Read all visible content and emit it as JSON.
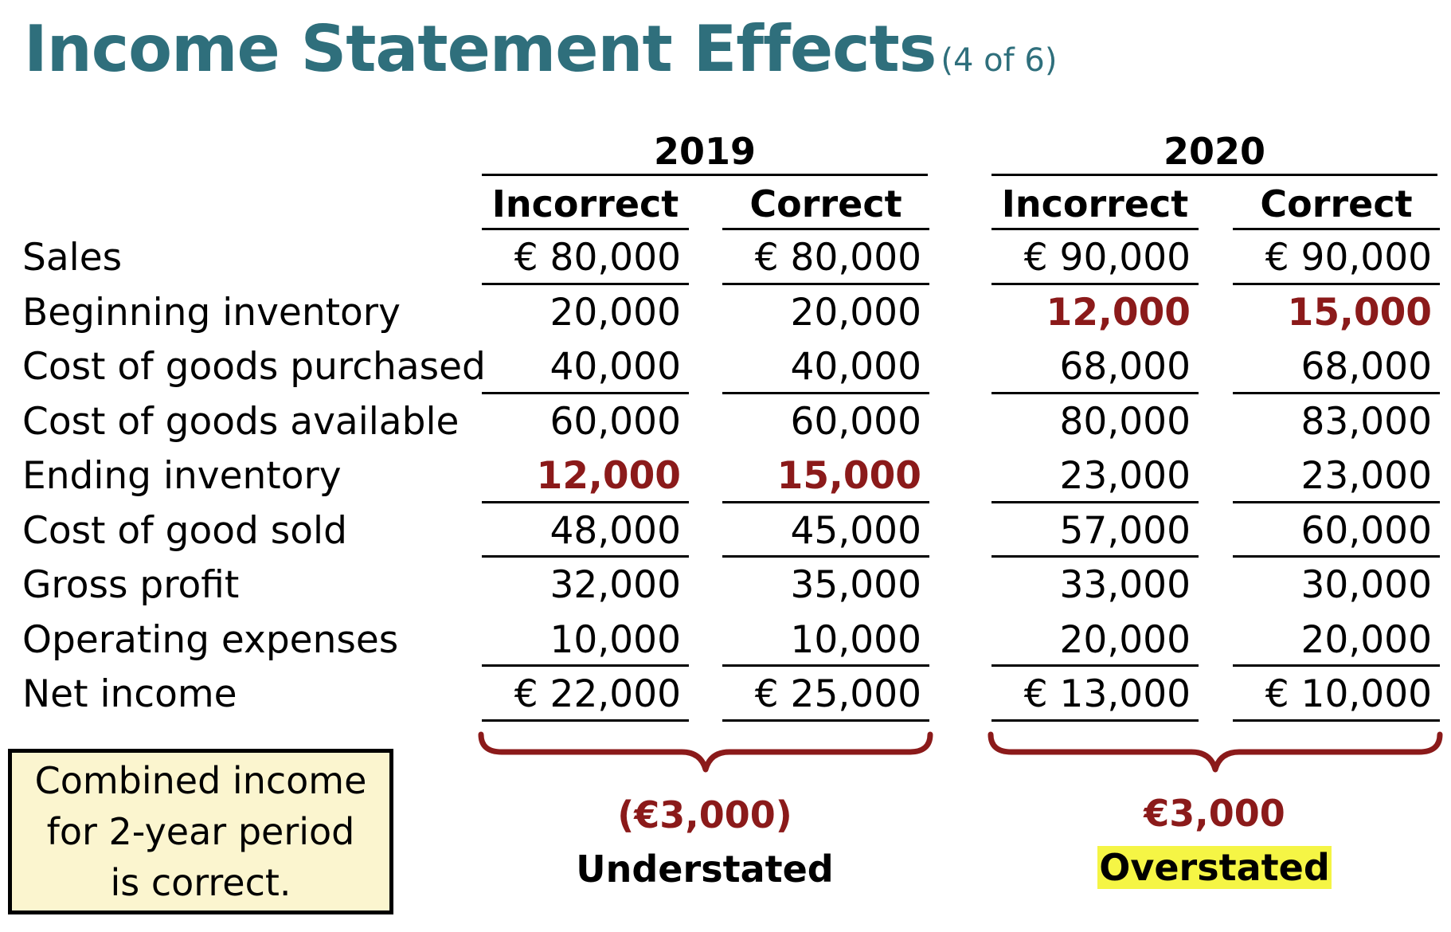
{
  "title": "Income Statement Effects",
  "subtitle": "(4 of 6)",
  "years": [
    {
      "label": "2019",
      "col1": "Incorrect",
      "col2": "Correct"
    },
    {
      "label": "2020",
      "col1": "Incorrect",
      "col2": "Correct"
    }
  ],
  "rows": [
    {
      "label": "Sales",
      "values": [
        "€ 80,000",
        "€ 80,000",
        "€ 90,000",
        "€ 90,000"
      ],
      "highlight": [
        false,
        false,
        false,
        false
      ]
    },
    {
      "label": "Beginning inventory",
      "values": [
        "20,000",
        "20,000",
        "12,000",
        "15,000"
      ],
      "highlight": [
        false,
        false,
        true,
        true
      ]
    },
    {
      "label": "Cost of goods purchased",
      "values": [
        "40,000",
        "40,000",
        "68,000",
        "68,000"
      ],
      "highlight": [
        false,
        false,
        false,
        false
      ]
    },
    {
      "label": "Cost of goods available",
      "values": [
        "60,000",
        "60,000",
        "80,000",
        "83,000"
      ],
      "highlight": [
        false,
        false,
        false,
        false
      ]
    },
    {
      "label": "Ending inventory",
      "values": [
        "12,000",
        "15,000",
        "23,000",
        "23,000"
      ],
      "highlight": [
        true,
        true,
        false,
        false
      ]
    },
    {
      "label": "Cost of good sold",
      "values": [
        "48,000",
        "45,000",
        "57,000",
        "60,000"
      ],
      "highlight": [
        false,
        false,
        false,
        false
      ]
    },
    {
      "label": "Gross profit",
      "values": [
        "32,000",
        "35,000",
        "33,000",
        "30,000"
      ],
      "highlight": [
        false,
        false,
        false,
        false
      ]
    },
    {
      "label": "Operating expenses",
      "values": [
        "10,000",
        "10,000",
        "20,000",
        "20,000"
      ],
      "highlight": [
        false,
        false,
        false,
        false
      ]
    },
    {
      "label": "Net income",
      "values": [
        "€ 22,000",
        "€ 25,000",
        "€ 13,000",
        "€ 10,000"
      ],
      "highlight": [
        false,
        false,
        false,
        false
      ]
    }
  ],
  "results": {
    "y2019": {
      "amount": "(€3,000)",
      "status": "Understated"
    },
    "y2020": {
      "amount": "€3,000",
      "status": "Overstated"
    }
  },
  "note": "Combined income for 2-year period is correct.",
  "colors": {
    "title": "#2f6f7c",
    "highlight_red": "#8b1a1a",
    "highlight_yellow": "#f5f545",
    "note_bg": "#fbf5cf"
  }
}
